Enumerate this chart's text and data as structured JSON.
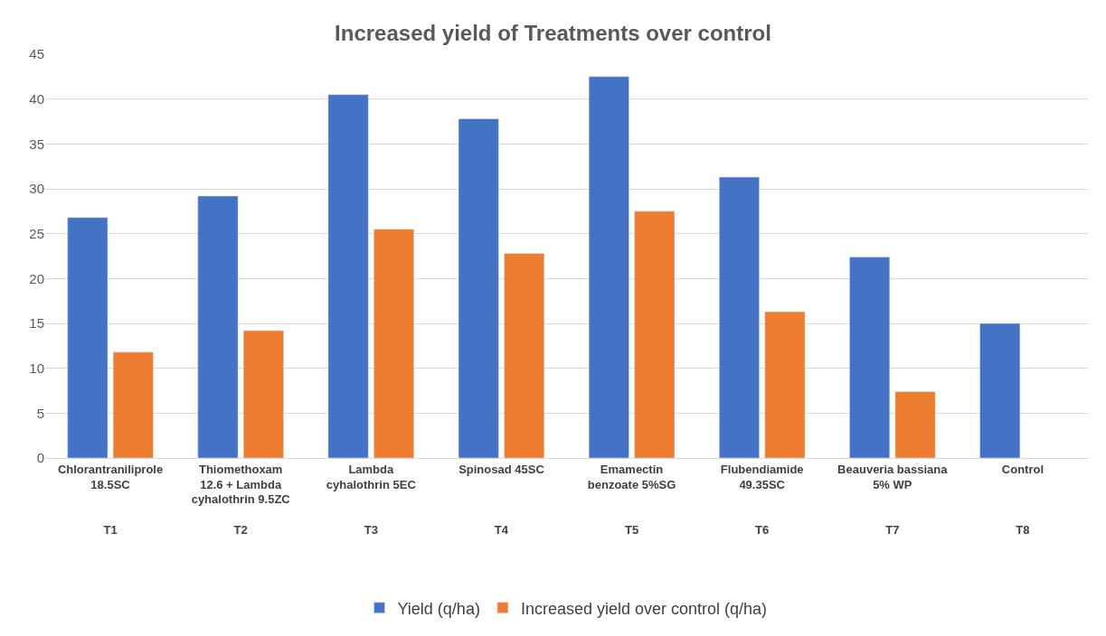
{
  "chart_data": {
    "type": "bar",
    "title": "Increased yield of Treatments over control",
    "categories": [
      "Chlorantraniliprole\n18.5SC\n\n\nT1",
      "Thiomethoxam\n12.6 + Lambda\ncyhalothrin 9.5ZC\n\nT2",
      "Lambda\ncyhalothrin 5EC\n\n\nT3",
      "Spinosad 45SC\n\n\n\nT4",
      "Emamectin\nbenzoate 5%SG\n\n\nT5",
      "Flubendiamide\n49.35SC\n\n\nT6",
      "Beauveria bassiana\n5% WP\n\n\nT7",
      "Control\n\n\n\nT8"
    ],
    "series": [
      {
        "name": "Yield (q/ha)",
        "color": "#4472c4",
        "values": [
          26.8,
          29.2,
          40.5,
          37.8,
          42.5,
          31.3,
          22.4,
          15.0
        ]
      },
      {
        "name": "Increased yield over control (q/ha)",
        "color": "#ed7d31",
        "values": [
          11.8,
          14.2,
          25.5,
          22.8,
          27.5,
          16.3,
          7.4,
          null
        ]
      }
    ],
    "ylim": [
      0,
      45
    ],
    "yticks": [
      0,
      5,
      10,
      15,
      20,
      25,
      30,
      35,
      40,
      45
    ],
    "grid": "y",
    "legend": "bottom"
  }
}
